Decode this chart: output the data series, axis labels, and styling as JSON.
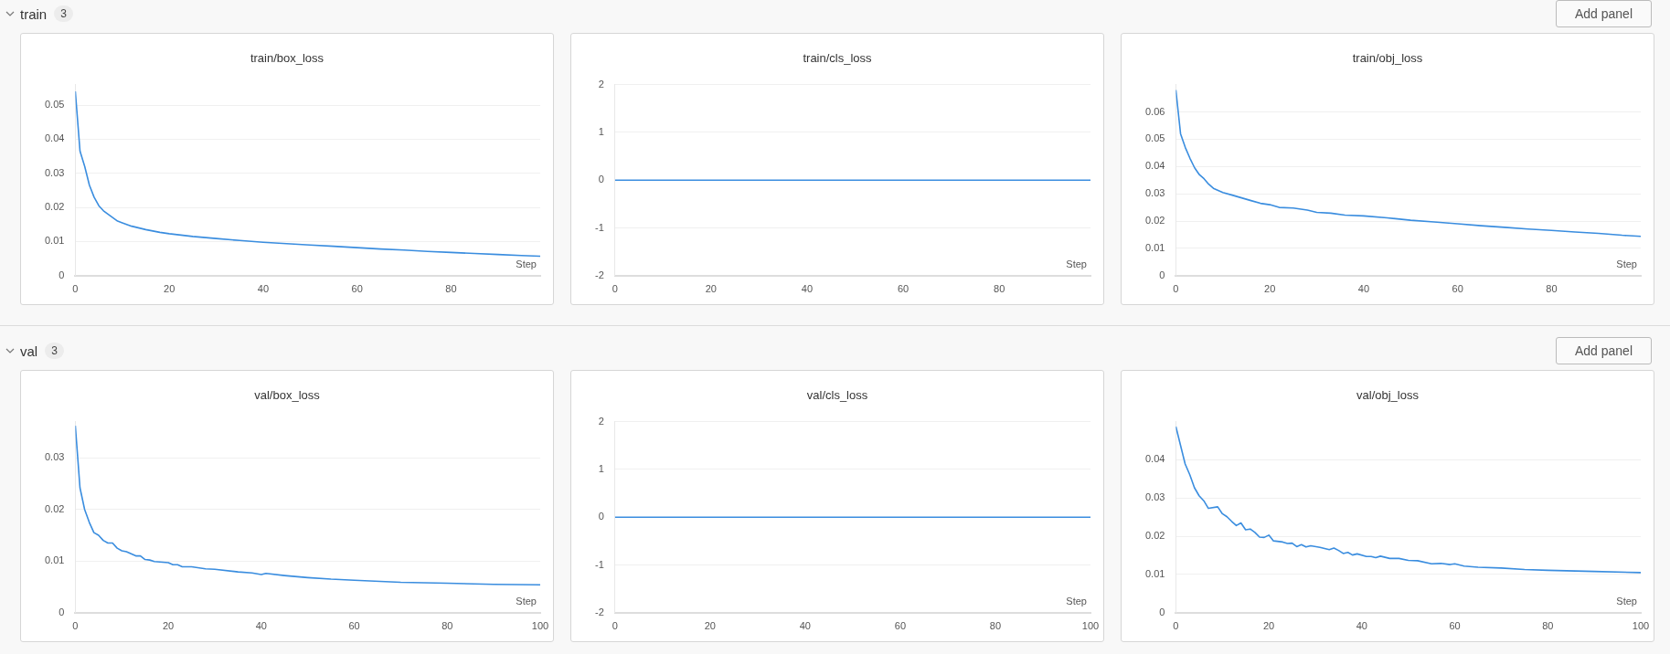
{
  "chart_data": [
    {
      "type": "line",
      "title": "train/box_loss",
      "xlabel": "Step",
      "annotations": [
        "train",
        "3",
        "Add panel"
      ],
      "grid": "y",
      "xlim": [
        0,
        99
      ],
      "xticks": [
        0,
        20,
        40,
        60,
        80
      ],
      "ylim": [
        0,
        0.056
      ],
      "yticks": [
        0,
        0.01,
        0.02,
        0.03,
        0.04,
        0.05
      ],
      "series": [
        {
          "color": "#3a8ddf",
          "x": [
            0,
            1,
            2,
            3,
            4,
            5,
            6,
            7,
            8,
            9,
            10,
            12,
            15,
            18,
            20,
            25,
            30,
            35,
            40,
            45,
            50,
            55,
            60,
            65,
            70,
            75,
            80,
            85,
            90,
            95,
            99
          ],
          "values": [
            0.054,
            0.0365,
            0.032,
            0.0265,
            0.023,
            0.0205,
            0.019,
            0.018,
            0.017,
            0.016,
            0.0155,
            0.0145,
            0.0135,
            0.0127,
            0.0123,
            0.0115,
            0.0109,
            0.0103,
            0.0098,
            0.0094,
            0.009,
            0.0086,
            0.0082,
            0.0078,
            0.0075,
            0.0071,
            0.0068,
            0.0065,
            0.0062,
            0.0059,
            0.0057
          ]
        }
      ]
    },
    {
      "type": "line",
      "title": "train/cls_loss",
      "xlabel": "Step",
      "grid": "y",
      "xlim": [
        0,
        99
      ],
      "xticks": [
        0,
        20,
        40,
        60,
        80
      ],
      "ylim": [
        -2,
        2
      ],
      "yticks": [
        -2,
        -1,
        0,
        1,
        2
      ],
      "series": [
        {
          "color": "#3a8ddf",
          "x": [
            0,
            99
          ],
          "values": [
            0,
            0
          ]
        }
      ]
    },
    {
      "type": "line",
      "title": "train/obj_loss",
      "xlabel": "Step",
      "grid": "y",
      "xlim": [
        0,
        99
      ],
      "xticks": [
        0,
        20,
        40,
        60,
        80
      ],
      "ylim": [
        0,
        0.07
      ],
      "yticks": [
        0,
        0.01,
        0.02,
        0.03,
        0.04,
        0.05,
        0.06
      ],
      "series": [
        {
          "color": "#3a8ddf",
          "x": [
            0,
            1,
            2,
            3,
            4,
            5,
            6,
            7,
            8,
            10,
            12,
            14,
            16,
            18,
            20,
            22,
            25,
            28,
            30,
            33,
            36,
            40,
            45,
            50,
            55,
            60,
            65,
            70,
            75,
            80,
            85,
            90,
            95,
            99
          ],
          "values": [
            0.068,
            0.052,
            0.047,
            0.043,
            0.0395,
            0.037,
            0.0355,
            0.0335,
            0.032,
            0.0305,
            0.0295,
            0.0285,
            0.0275,
            0.0265,
            0.026,
            0.025,
            0.0248,
            0.024,
            0.0232,
            0.0229,
            0.0222,
            0.0219,
            0.0212,
            0.0203,
            0.0197,
            0.019,
            0.0183,
            0.0177,
            0.0171,
            0.0166,
            0.016,
            0.0155,
            0.0148,
            0.0144
          ]
        }
      ]
    },
    {
      "type": "line",
      "title": "val/box_loss",
      "xlabel": "Step",
      "annotations": [
        "val",
        "3",
        "Add panel"
      ],
      "grid": "y",
      "xlim": [
        0,
        100
      ],
      "xticks": [
        0,
        20,
        40,
        60,
        80,
        100
      ],
      "ylim": [
        0,
        0.037
      ],
      "yticks": [
        0,
        0.01,
        0.02,
        0.03
      ],
      "series": [
        {
          "color": "#3a8ddf",
          "x": [
            0,
            1,
            2,
            3,
            4,
            5,
            6,
            7,
            8,
            9,
            10,
            11,
            13,
            14,
            15,
            16,
            17,
            20,
            21,
            22,
            23,
            25,
            28,
            30,
            35,
            38,
            40,
            41,
            45,
            50,
            55,
            60,
            70,
            80,
            90,
            100
          ],
          "values": [
            0.0362,
            0.0242,
            0.02,
            0.0175,
            0.0155,
            0.015,
            0.014,
            0.0135,
            0.0135,
            0.0125,
            0.012,
            0.0118,
            0.011,
            0.011,
            0.0103,
            0.0102,
            0.0099,
            0.0097,
            0.0093,
            0.0093,
            0.0089,
            0.0089,
            0.0085,
            0.0084,
            0.0079,
            0.0077,
            0.0074,
            0.0076,
            0.0072,
            0.0068,
            0.0065,
            0.0063,
            0.0059,
            0.0057,
            0.0055,
            0.0054
          ]
        }
      ]
    },
    {
      "type": "line",
      "title": "val/cls_loss",
      "xlabel": "Step",
      "grid": "y",
      "xlim": [
        0,
        100
      ],
      "xticks": [
        0,
        20,
        40,
        60,
        80,
        100
      ],
      "ylim": [
        -2,
        2
      ],
      "yticks": [
        -2,
        -1,
        0,
        1,
        2
      ],
      "series": [
        {
          "color": "#3a8ddf",
          "x": [
            0,
            100
          ],
          "values": [
            0,
            0
          ]
        }
      ]
    },
    {
      "type": "line",
      "title": "val/obj_loss",
      "xlabel": "Step",
      "grid": "y",
      "xlim": [
        0,
        100
      ],
      "xticks": [
        0,
        20,
        40,
        60,
        80,
        100
      ],
      "ylim": [
        0,
        0.05
      ],
      "yticks": [
        0,
        0.01,
        0.02,
        0.03,
        0.04
      ],
      "series": [
        {
          "color": "#3a8ddf",
          "x": [
            0,
            2,
            3,
            4,
            5,
            6,
            7,
            9,
            10,
            11,
            12,
            13,
            14,
            15,
            16,
            17,
            18,
            19,
            20,
            21,
            23,
            24,
            25,
            26,
            27,
            28,
            29,
            31,
            33,
            34,
            35,
            36,
            37,
            38,
            39,
            41,
            42,
            43,
            44,
            46,
            48,
            50,
            52,
            55,
            57,
            59,
            60,
            62,
            65,
            70,
            75,
            80,
            90,
            100
          ],
          "values": [
            0.0487,
            0.0389,
            0.0361,
            0.0327,
            0.0306,
            0.0293,
            0.0273,
            0.0277,
            0.0259,
            0.0251,
            0.0239,
            0.0228,
            0.0235,
            0.0217,
            0.0219,
            0.021,
            0.0198,
            0.0197,
            0.0203,
            0.0188,
            0.0185,
            0.0181,
            0.0182,
            0.0173,
            0.0178,
            0.0172,
            0.0175,
            0.0171,
            0.0165,
            0.0169,
            0.0163,
            0.0155,
            0.0158,
            0.0151,
            0.0154,
            0.0147,
            0.0147,
            0.0144,
            0.0148,
            0.0142,
            0.0142,
            0.0137,
            0.0136,
            0.0128,
            0.0129,
            0.0126,
            0.0128,
            0.0122,
            0.0119,
            0.0117,
            0.0113,
            0.0111,
            0.0108,
            0.0105
          ]
        }
      ]
    }
  ]
}
